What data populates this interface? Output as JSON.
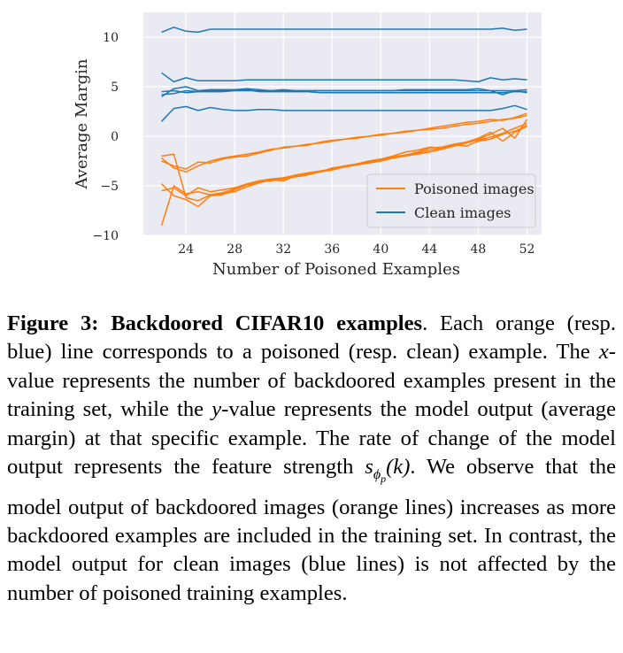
{
  "chart_data": {
    "type": "line",
    "xlabel": "Number of Poisoned Examples",
    "ylabel": "Average Margin",
    "xlim": [
      20.5,
      53.2
    ],
    "ylim": [
      -10,
      12.5
    ],
    "xticks": [
      24,
      28,
      32,
      36,
      40,
      44,
      48,
      52
    ],
    "yticks": [
      10,
      5,
      0,
      -5,
      -10
    ],
    "xtick_labels": [
      "24",
      "28",
      "32",
      "36",
      "40",
      "44",
      "48",
      "52"
    ],
    "ytick_labels": [
      "10",
      "5",
      "0",
      "−5",
      "−10"
    ],
    "grid": true,
    "background": "#eaeaf2",
    "legend_position": "lower-right",
    "x": [
      22,
      23,
      24,
      25,
      26,
      27,
      28,
      29,
      30,
      31,
      32,
      33,
      34,
      35,
      36,
      37,
      38,
      39,
      40,
      41,
      42,
      43,
      44,
      45,
      46,
      47,
      48,
      49,
      50,
      51,
      52
    ],
    "series": [
      {
        "name": "Poisoned images",
        "color": "#ff7f0e",
        "lines": [
          [
            -2.2,
            -3.2,
            -3.6,
            -3.0,
            -2.5,
            -2.2,
            -2.0,
            -1.8,
            -1.6,
            -1.3,
            -1.2,
            -1.0,
            -0.8,
            -0.7,
            -0.5,
            -0.3,
            -0.2,
            0.0,
            0.2,
            0.3,
            0.4,
            0.6,
            0.7,
            0.8,
            1.0,
            1.2,
            1.3,
            1.5,
            1.7,
            1.8,
            2.1
          ],
          [
            -2.5,
            -3.0,
            -3.3,
            -2.6,
            -2.7,
            -2.3,
            -2.1,
            -2.0,
            -1.7,
            -1.4,
            -1.1,
            -1.0,
            -0.9,
            -0.6,
            -0.4,
            -0.3,
            -0.1,
            0.0,
            0.1,
            0.3,
            0.5,
            0.6,
            0.8,
            1.0,
            1.2,
            1.4,
            1.5,
            1.7,
            1.6,
            1.9,
            2.3
          ],
          [
            -5.5,
            -5.2,
            -6.0,
            -5.2,
            -5.6,
            -5.4,
            -5.2,
            -4.8,
            -4.5,
            -4.3,
            -4.2,
            -3.9,
            -3.7,
            -3.5,
            -3.3,
            -3.1,
            -2.8,
            -2.6,
            -2.4,
            -2.1,
            -1.9,
            -1.7,
            -1.4,
            -1.2,
            -0.9,
            -0.6,
            -0.4,
            -0.1,
            0.3,
            0.8,
            1.3
          ],
          [
            -9.0,
            -5.0,
            -5.8,
            -5.6,
            -5.9,
            -5.7,
            -5.3,
            -4.9,
            -4.6,
            -4.5,
            -4.3,
            -4.1,
            -3.8,
            -3.6,
            -3.4,
            -3.1,
            -2.9,
            -2.7,
            -2.5,
            -2.2,
            -2.0,
            -1.8,
            -1.6,
            -1.3,
            -1.0,
            -0.7,
            -0.3,
            0.2,
            0.8,
            -0.2,
            1.7
          ],
          [
            -2.0,
            -1.8,
            -6.2,
            -6.5,
            -5.9,
            -5.8,
            -5.6,
            -5.1,
            -4.7,
            -4.4,
            -4.5,
            -4.0,
            -3.7,
            -3.6,
            -3.3,
            -3.0,
            -2.8,
            -2.6,
            -2.3,
            -2.2,
            -1.9,
            -1.6,
            -1.2,
            -1.1,
            -0.8,
            -1.0,
            -0.5,
            -0.3,
            0.2,
            0.5,
            1.1
          ],
          [
            -4.8,
            -6.0,
            -6.4,
            -7.1,
            -6.0,
            -5.9,
            -5.4,
            -4.9,
            -4.7,
            -4.4,
            -4.2,
            -4.1,
            -3.9,
            -3.6,
            -3.2,
            -3.0,
            -2.8,
            -2.5,
            -2.3,
            -2.0,
            -1.6,
            -1.4,
            -1.1,
            -1.2,
            -0.8,
            -0.6,
            -0.2,
            0.4,
            -0.5,
            0.4,
            1.0
          ]
        ]
      },
      {
        "name": "Clean images",
        "color": "#1f77b4",
        "lines": [
          [
            10.5,
            11.0,
            10.6,
            10.5,
            10.8,
            10.8,
            10.8,
            10.8,
            10.8,
            10.8,
            10.8,
            10.8,
            10.8,
            10.8,
            10.8,
            10.8,
            10.8,
            10.8,
            10.8,
            10.8,
            10.8,
            10.8,
            10.8,
            10.8,
            10.8,
            10.8,
            10.8,
            10.8,
            10.9,
            10.7,
            10.8
          ],
          [
            6.4,
            5.5,
            5.9,
            5.6,
            5.6,
            5.6,
            5.6,
            5.7,
            5.7,
            5.7,
            5.7,
            5.7,
            5.7,
            5.7,
            5.7,
            5.7,
            5.7,
            5.7,
            5.7,
            5.7,
            5.7,
            5.7,
            5.7,
            5.7,
            5.7,
            5.6,
            5.5,
            5.9,
            5.7,
            5.8,
            5.7
          ],
          [
            4.5,
            4.6,
            4.4,
            4.5,
            4.5,
            4.5,
            4.6,
            4.6,
            4.6,
            4.6,
            4.6,
            4.6,
            4.6,
            4.6,
            4.6,
            4.6,
            4.6,
            4.6,
            4.6,
            4.6,
            4.6,
            4.6,
            4.6,
            4.6,
            4.6,
            4.6,
            4.6,
            4.6,
            4.6,
            4.6,
            4.7
          ],
          [
            4.0,
            4.8,
            5.0,
            4.6,
            4.7,
            4.7,
            4.7,
            4.7,
            4.5,
            4.5,
            4.5,
            4.5,
            4.5,
            4.4,
            4.4,
            4.4,
            4.4,
            4.4,
            4.4,
            4.4,
            4.4,
            4.4,
            4.4,
            4.4,
            4.4,
            4.4,
            4.4,
            4.4,
            4.4,
            4.5,
            4.5
          ],
          [
            4.2,
            4.3,
            4.6,
            4.5,
            4.6,
            4.6,
            4.7,
            4.8,
            4.7,
            4.6,
            4.7,
            4.6,
            4.6,
            4.6,
            4.6,
            4.6,
            4.6,
            4.6,
            4.6,
            4.6,
            4.7,
            4.7,
            4.7,
            4.7,
            4.7,
            4.7,
            4.8,
            4.6,
            4.2,
            4.6,
            4.4
          ],
          [
            1.5,
            2.8,
            3.0,
            2.6,
            2.9,
            2.7,
            2.6,
            2.6,
            2.7,
            2.7,
            2.6,
            2.6,
            2.6,
            2.6,
            2.6,
            2.6,
            2.6,
            2.6,
            2.6,
            2.6,
            2.6,
            2.6,
            2.6,
            2.6,
            2.6,
            2.6,
            2.6,
            2.6,
            2.8,
            3.1,
            2.7
          ]
        ]
      }
    ]
  },
  "caption": {
    "label": "Figure 3:",
    "title": "Backdoored CIFAR10 examples",
    "p1": ". Each orange (resp. blue) line corresponds to a poisoned (resp. clean) example. The ",
    "x_var": "x",
    "p2": "-value represents the number of backdoored examples present in the training set, while the ",
    "y_var": "y",
    "p3": "-value represents the model output (average margin) at that specific example. The rate of change of the model output represents the feature strength ",
    "math_s": "s",
    "math_phi": "ϕ",
    "math_p": "p",
    "math_k": "(k)",
    "p4": ". We observe that the model output of backdoored images (orange lines) increases as more backdoored examples are included in the training set. In contrast, the model output for clean images (blue lines) is not affected by the number of poisoned training examples."
  }
}
